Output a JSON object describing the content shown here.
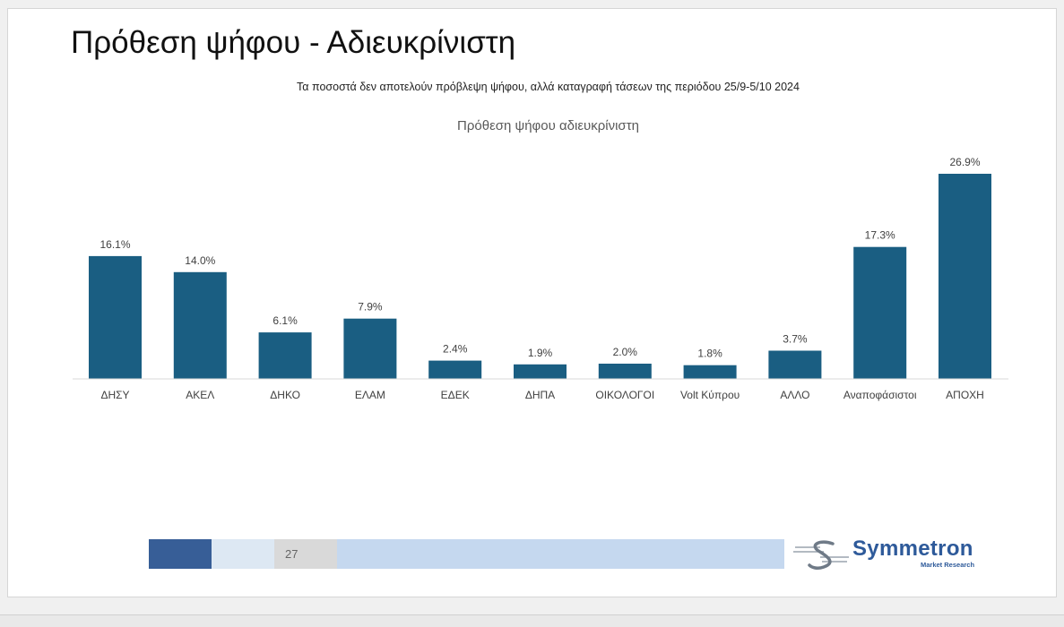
{
  "slide": {
    "title": "Πρόθεση ψήφου - Αδιευκρίνιστη",
    "subtitle": "Τα ποσοστά δεν αποτελούν πρόβλεψη ψήφου, αλλά καταγραφή τάσεων της περιόδου 25/9-5/10 2024"
  },
  "chart_data": {
    "type": "bar",
    "title": "Πρόθεση ψήφου αδιευκρίνιστη",
    "categories": [
      "ΔΗΣΥ",
      "ΑΚΕΛ",
      "ΔΗΚΟ",
      "ΕΛΑΜ",
      "ΕΔΕΚ",
      "ΔΗΠΑ",
      "ΟΙΚΟΛΟΓΟΙ",
      "Volt Κύπρου",
      "ΑΛΛΟ",
      "Αναποφάσιστοι",
      "ΑΠΟΧΗ"
    ],
    "values": [
      16.1,
      14.0,
      6.1,
      7.9,
      2.4,
      1.9,
      2.0,
      1.8,
      3.7,
      17.3,
      26.9
    ],
    "value_labels": [
      "16.1%",
      "14.0%",
      "6.1%",
      "7.9%",
      "2.4%",
      "1.9%",
      "2.0%",
      "1.8%",
      "3.7%",
      "17.3%",
      "26.9%"
    ],
    "xlabel": "",
    "ylabel": "",
    "ylim": [
      0,
      30
    ],
    "grid": false,
    "legend": "none",
    "bar_color": "#1a5e82"
  },
  "footer": {
    "page_number": "27",
    "colors": {
      "segment_dark": "#375e97",
      "segment_pale": "#dde8f3",
      "segment_grey": "#d9d9d9",
      "segment_light": "#c5d8ef"
    }
  },
  "logo": {
    "name": "Symmetron",
    "tagline": "Market Research",
    "icon": "symmetron-logo-icon"
  }
}
